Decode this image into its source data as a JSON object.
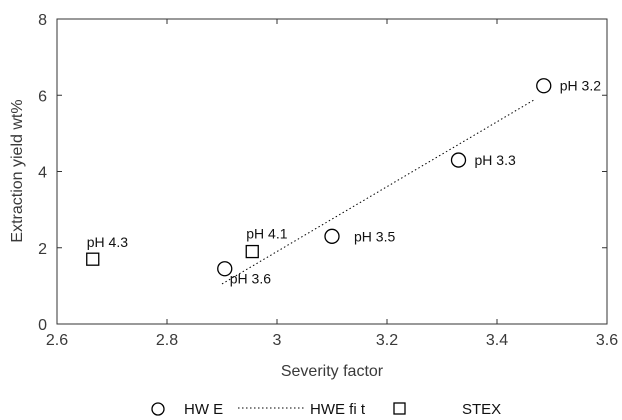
{
  "chart_data": {
    "type": "scatter",
    "xlabel": "Severity factor",
    "ylabel": "Extraction yield wt%",
    "xlim": [
      2.6,
      3.6
    ],
    "ylim": [
      0,
      8
    ],
    "xticks": [
      "2.6",
      "2.8",
      "3",
      "3.2",
      "3.4",
      "3.6"
    ],
    "yticks": [
      "0",
      "2",
      "4",
      "6",
      "8"
    ],
    "grid": false,
    "legend_position": "bottom",
    "series": [
      {
        "name": "HW E",
        "marker": "circle",
        "points": [
          {
            "x": 2.905,
            "y": 1.45,
            "label": "pH 3.6"
          },
          {
            "x": 3.1,
            "y": 2.3,
            "label": "pH 3.5"
          },
          {
            "x": 3.33,
            "y": 4.3,
            "label": "pH 3.3"
          },
          {
            "x": 3.485,
            "y": 6.25,
            "label": "pH 3.2"
          }
        ]
      },
      {
        "name": "HWE fi t",
        "style": "dotted-line",
        "points": [
          {
            "x": 2.9,
            "y": 1.05
          },
          {
            "x": 3.47,
            "y": 5.9
          }
        ]
      },
      {
        "name": "STEX",
        "marker": "square",
        "points": [
          {
            "x": 2.665,
            "y": 1.7,
            "label": "pH 4.3"
          },
          {
            "x": 2.955,
            "y": 1.9,
            "label": "pH 4.1"
          }
        ]
      }
    ],
    "colors": {
      "marker": "#000000",
      "axis": "#333333",
      "text": "#3a3a3a"
    }
  }
}
